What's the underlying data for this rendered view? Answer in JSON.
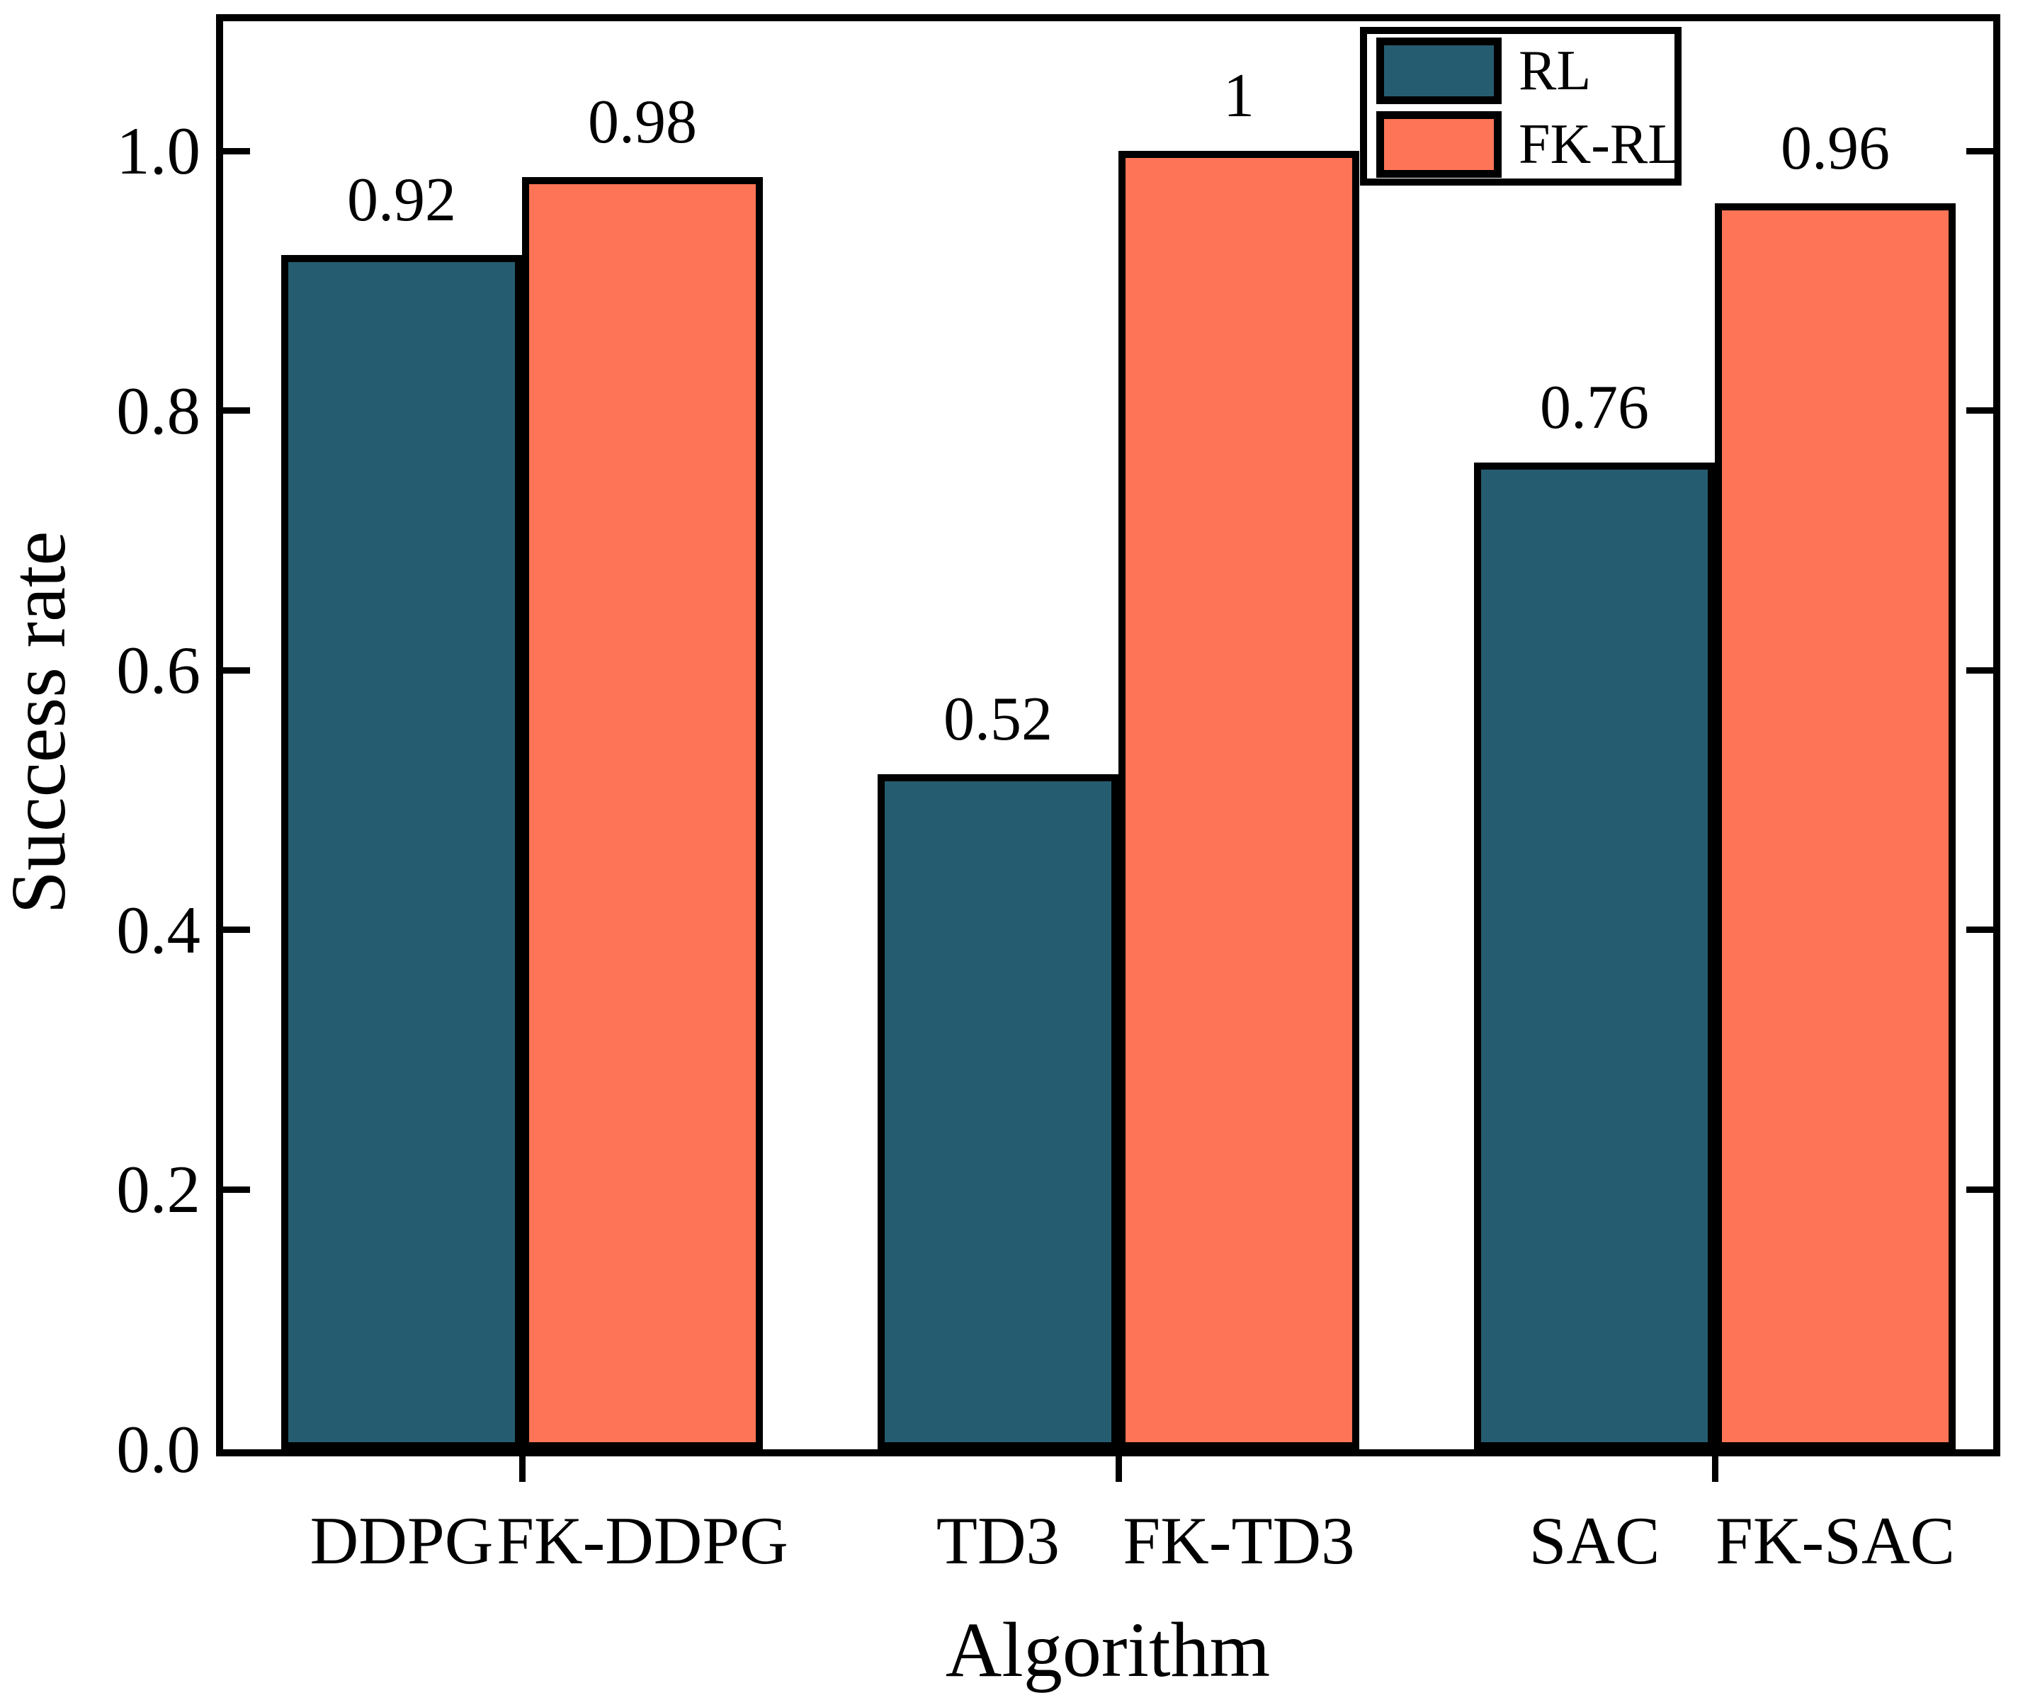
{
  "chart_data": {
    "type": "bar",
    "title": "",
    "xlabel": "Algorithm",
    "ylabel": "Success rate",
    "categories": [
      "DDPG",
      "FK-DDPG",
      "TD3",
      "FK-TD3",
      "SAC",
      "FK-SAC"
    ],
    "series": [
      {
        "name": "RL",
        "color": "#265C70",
        "categories": [
          "DDPG",
          "TD3",
          "SAC"
        ],
        "values": [
          0.92,
          0.52,
          0.76
        ],
        "value_labels": [
          "0.92",
          "0.52",
          "0.76"
        ]
      },
      {
        "name": "FK-RL",
        "color": "#FD7456",
        "categories": [
          "FK-DDPG",
          "FK-TD3",
          "FK-SAC"
        ],
        "values": [
          0.98,
          1,
          0.96
        ],
        "value_labels": [
          "0.98",
          "1",
          "0.96"
        ]
      }
    ],
    "ylim": [
      0,
      1.1
    ],
    "yticks": [
      "0.0",
      "0.2",
      "0.4",
      "0.6",
      "0.8",
      "1.0"
    ],
    "grid": false,
    "legend_position": "top-right",
    "bar_edge_color": "#000000",
    "axis_color": "#000000",
    "background": "#FFFFFF"
  }
}
